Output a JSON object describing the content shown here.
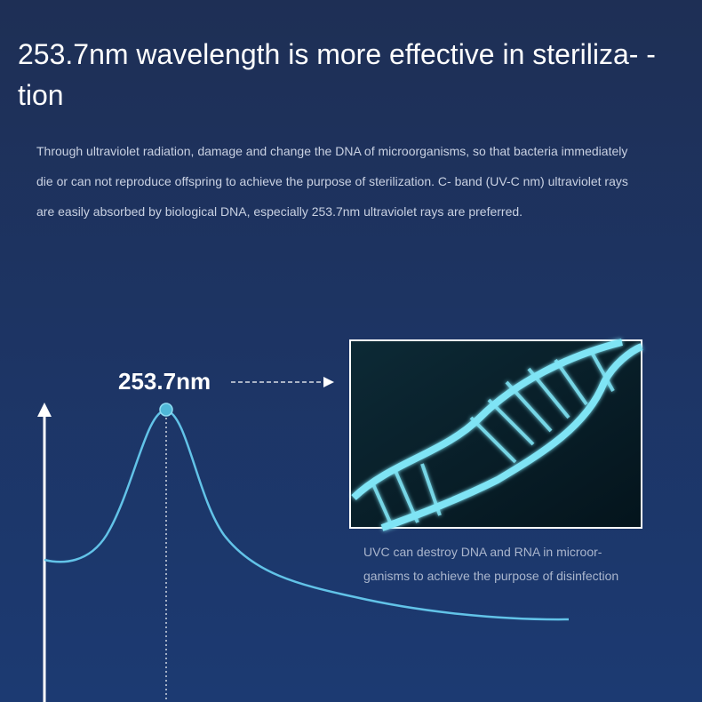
{
  "header": {
    "title_lines": [
      "253.7nm wavelength is more effective in steriliza- -",
      "tion"
    ]
  },
  "intro": {
    "lines": [
      "Through ultraviolet radiation, damage and change the DNA of microorganisms, so that bacteria immediately",
      "die or can not reproduce offspring to achieve the purpose of sterilization. C- band (UV-C nm) ultraviolet rays",
      "are easily absorbed by biological DNA, especially 253.7nm ultraviolet rays are preferred."
    ]
  },
  "diagram": {
    "peak_label": "253.7nm",
    "caption_lines": [
      "UVC can destroy DNA and RNA in microor-",
      "ganisms to achieve the purpose of disinfection"
    ]
  }
}
